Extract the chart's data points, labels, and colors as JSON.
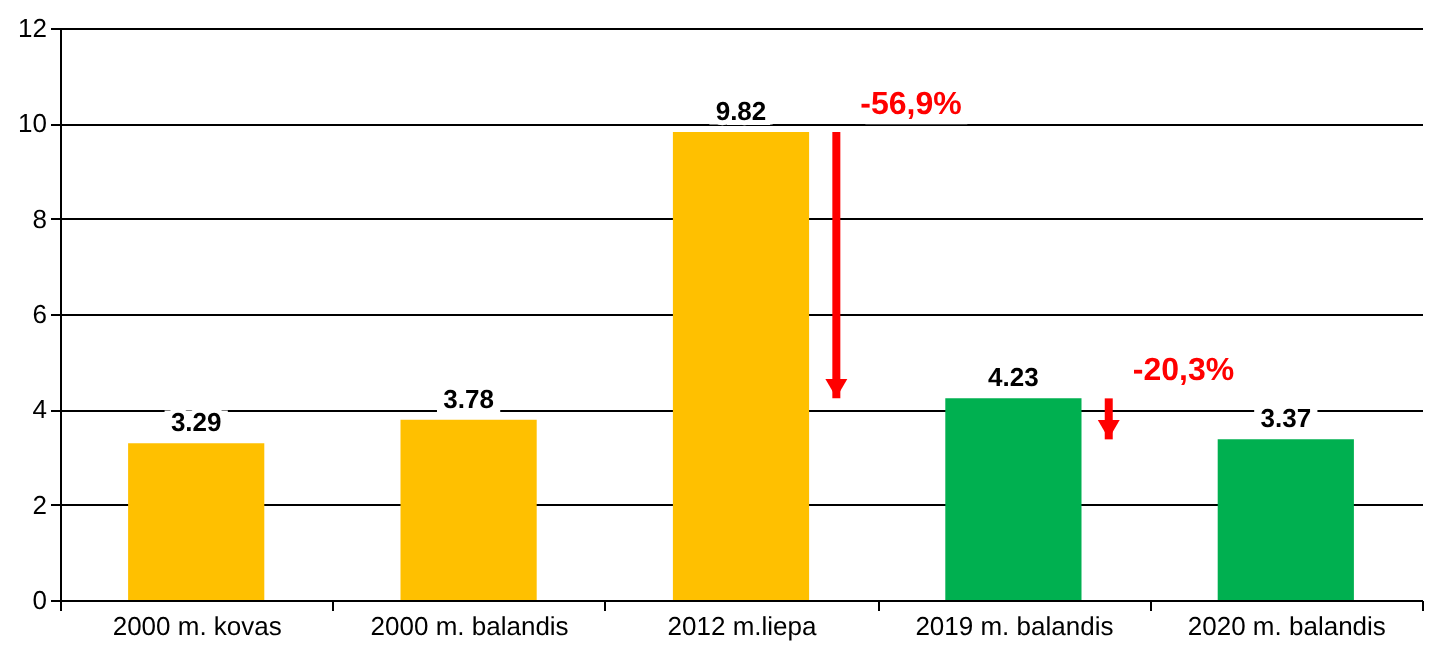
{
  "chart_data": {
    "type": "bar",
    "categories": [
      "2000 m. kovas",
      "2000 m. balandis",
      "2012 m.liepa",
      "2019 m. balandis",
      "2020 m. balandis"
    ],
    "values": [
      3.29,
      3.78,
      9.82,
      4.23,
      3.37
    ],
    "colors": [
      "#ffc000",
      "#ffc000",
      "#ffc000",
      "#00b050",
      "#00b050"
    ],
    "ylim": [
      0,
      12
    ],
    "yticks": [
      0,
      2,
      4,
      6,
      8,
      10,
      12
    ],
    "grid": "y",
    "data_labels": true,
    "annotations": [
      "-56,9%",
      "-20,3%"
    ]
  }
}
